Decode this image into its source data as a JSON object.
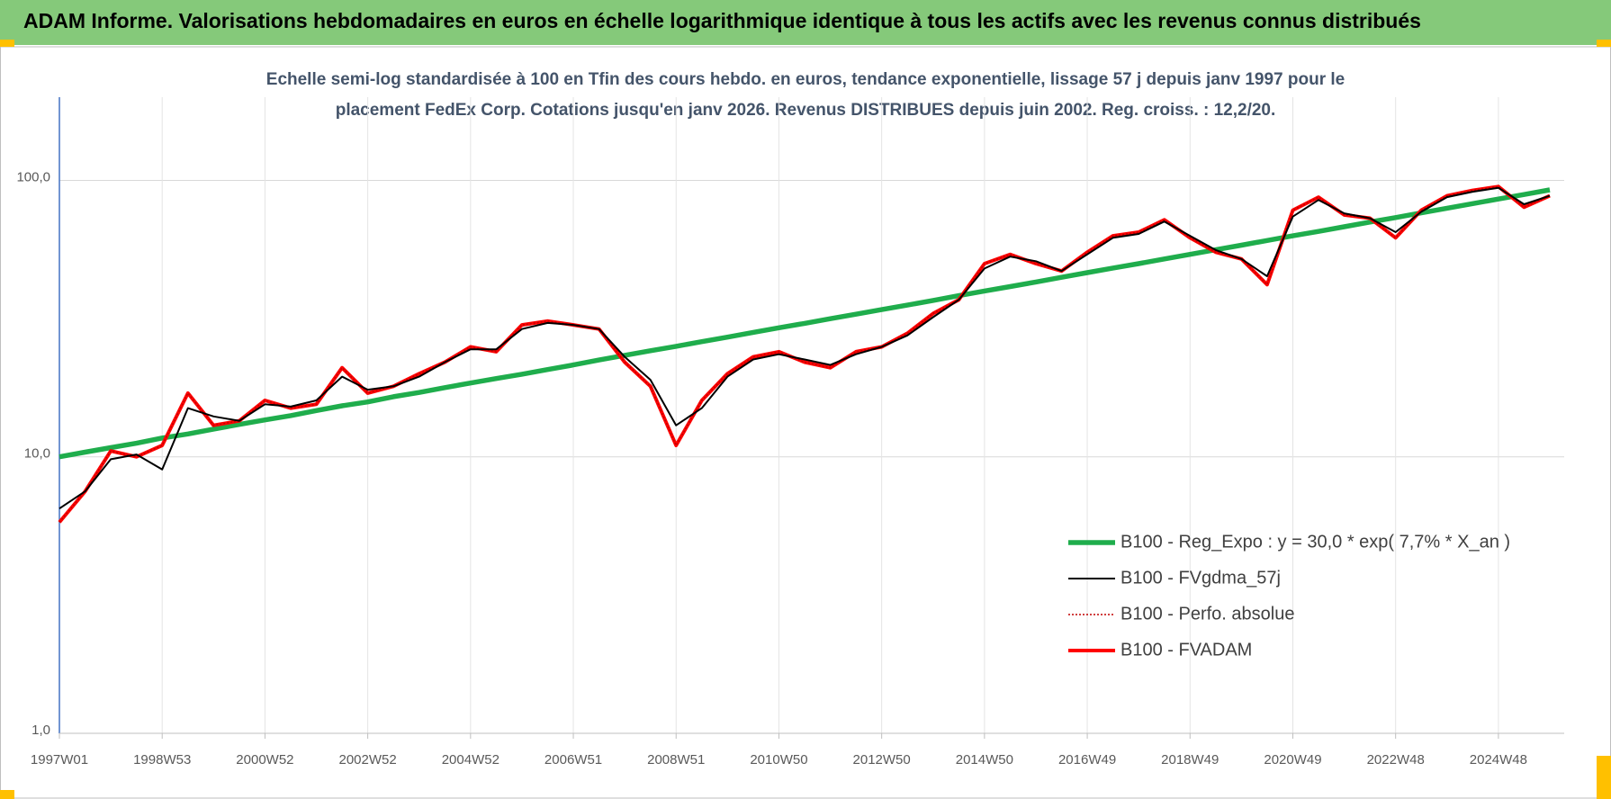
{
  "header": {
    "title": "ADAM Informe. Valorisations hebdomadaires en euros en échelle logarithmique identique à tous les actifs avec les revenus connus distribués"
  },
  "chart_data": {
    "type": "line",
    "subtitle": [
      "Echelle semi-log standardisée à 100 en Tfin des cours hebdo. en euros, tendance exponentielle, lissage 57 j depuis janv 1997 pour le",
      "placement FedEx Corp. Cotations jusqu'en janv 2026. Revenus DISTRIBUES depuis juin 2002. Reg. croiss. : 12,2/20."
    ],
    "categories": [
      "1997W01",
      null,
      null,
      null,
      "1998W53",
      null,
      null,
      null,
      "2000W52",
      null,
      null,
      null,
      "2002W52",
      null,
      null,
      null,
      "2004W52",
      null,
      null,
      null,
      "2006W51",
      null,
      null,
      null,
      "2008W51",
      null,
      null,
      null,
      "2010W50",
      null,
      null,
      null,
      "2012W50",
      null,
      null,
      null,
      "2014W50",
      null,
      null,
      null,
      "2016W49",
      null,
      null,
      null,
      "2018W49",
      null,
      null,
      null,
      "2020W49",
      null,
      null,
      null,
      "2022W48",
      null,
      null,
      null,
      "2024W48",
      null,
      null
    ],
    "log_scale": true,
    "ylim": [
      1,
      200
    ],
    "yticks": [
      {
        "value": 1,
        "label": "1,0"
      },
      {
        "value": 10,
        "label": "10,0"
      },
      {
        "value": 100,
        "label": "100,0"
      }
    ],
    "grid": true,
    "legend": "right",
    "series": [
      {
        "name": "B100 - Reg_Expo : y = 30,0 * exp( 7,7% *  X_an )",
        "color": "#1fad4c",
        "style": "solid",
        "values": [
          10.0,
          10.4,
          10.8,
          11.2,
          11.7,
          12.1,
          12.6,
          13.1,
          13.6,
          14.1,
          14.7,
          15.3,
          15.8,
          16.5,
          17.1,
          17.8,
          18.5,
          19.2,
          19.9,
          20.7,
          21.5,
          22.4,
          23.3,
          24.2,
          25.1,
          26.1,
          27.1,
          28.2,
          29.3,
          30.4,
          31.6,
          32.8,
          34.1,
          35.4,
          36.8,
          38.3,
          39.8,
          41.3,
          42.9,
          44.6,
          46.4,
          48.2,
          50.0,
          52.0,
          54.0,
          56.1,
          58.3,
          60.6,
          63.0,
          65.4,
          68.0,
          70.7,
          73.4,
          76.3,
          79.3,
          82.4,
          85.6,
          88.9,
          92.4
        ]
      },
      {
        "name": "B100 - FVgdma_57j",
        "color": "#000000",
        "style": "solid",
        "values": [
          6.5,
          7.5,
          9.8,
          10.2,
          9.0,
          15,
          14,
          13.5,
          15.5,
          15.2,
          16,
          19.5,
          17.5,
          18,
          19.5,
          22,
          24.5,
          24.5,
          29,
          30.5,
          30,
          29,
          23,
          19,
          13,
          15,
          19.5,
          22.5,
          23.5,
          22.5,
          21.5,
          23.5,
          25,
          27.5,
          32,
          37,
          48,
          53,
          51,
          47,
          54,
          62,
          64,
          71,
          63,
          56,
          52,
          45,
          74,
          85,
          76,
          73,
          65,
          77,
          87,
          91,
          94,
          82,
          88
        ]
      },
      {
        "name": "B100 - Perfo. absolue",
        "color": "#c00000",
        "style": "dotted",
        "values": [
          5.8,
          7.5,
          10.5,
          10.0,
          11,
          17,
          13,
          13.5,
          16,
          15,
          15.5,
          21,
          17,
          18,
          20,
          22,
          25,
          24,
          30,
          31,
          30,
          29,
          22,
          18,
          11,
          16,
          20,
          23,
          24,
          22,
          21,
          24,
          25,
          28,
          33,
          37,
          50,
          54,
          50,
          47,
          55,
          63,
          65,
          72,
          62,
          55,
          52,
          42,
          78,
          87,
          75,
          73,
          62,
          78,
          88,
          92,
          95,
          80,
          88
        ]
      },
      {
        "name": "B100 - FVADAM",
        "color": "#ff0000",
        "style": "thick",
        "values": [
          5.8,
          7.5,
          10.5,
          10.0,
          11,
          17,
          13,
          13.5,
          16,
          15,
          15.5,
          21,
          17,
          18,
          20,
          22,
          25,
          24,
          30,
          31,
          30,
          29,
          22,
          18,
          11,
          16,
          20,
          23,
          24,
          22,
          21,
          24,
          25,
          28,
          33,
          37,
          50,
          54,
          50,
          47,
          55,
          63,
          65,
          72,
          62,
          55,
          52,
          42,
          78,
          87,
          75,
          73,
          62,
          78,
          88,
          92,
          95,
          80,
          88
        ]
      }
    ]
  }
}
